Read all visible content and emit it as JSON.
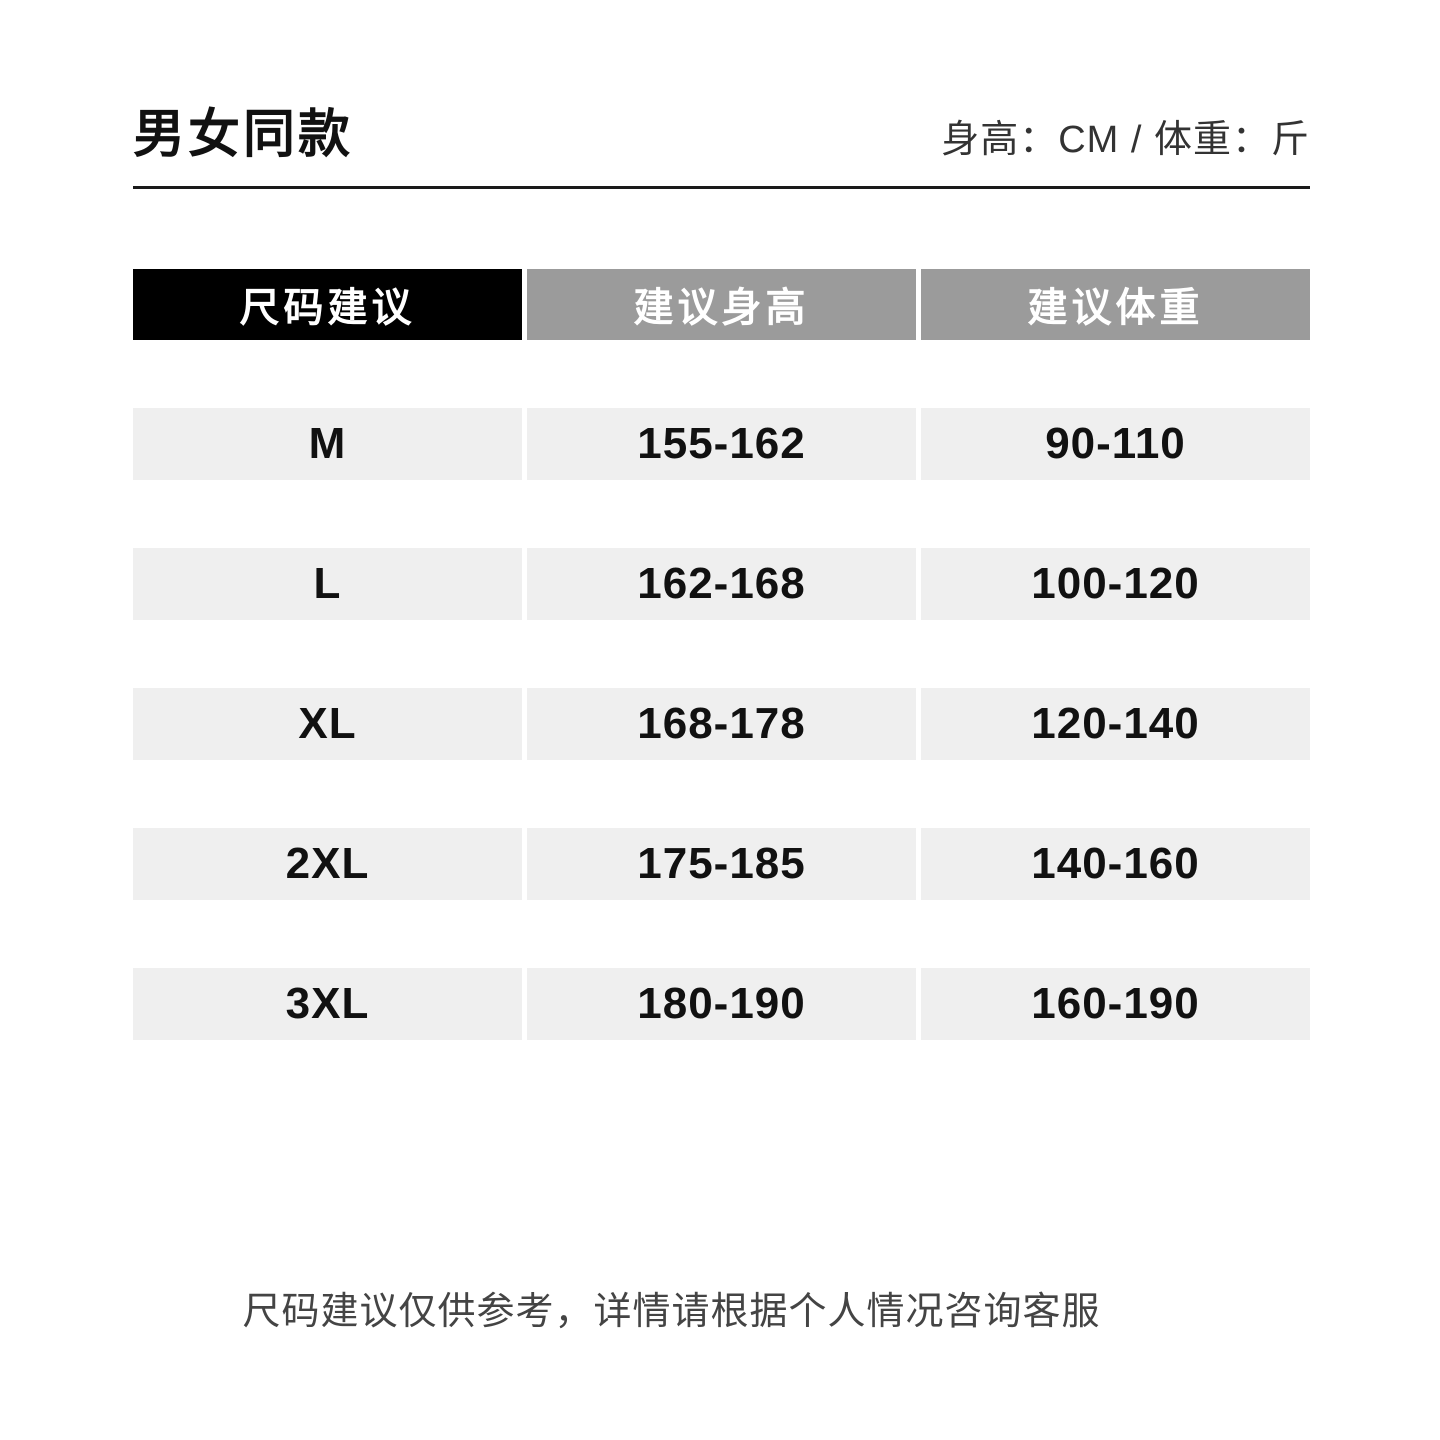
{
  "header": {
    "title": "男女同款",
    "units_note": "身高：CM / 体重：斤"
  },
  "table": {
    "columns": [
      {
        "label": "尺码建议"
      },
      {
        "label": "建议身高"
      },
      {
        "label": "建议体重"
      }
    ],
    "rows": [
      {
        "size": "M",
        "height_range": "155-162",
        "weight_range": "90-110"
      },
      {
        "size": "L",
        "height_range": "162-168",
        "weight_range": "100-120"
      },
      {
        "size": "XL",
        "height_range": "168-178",
        "weight_range": "120-140"
      },
      {
        "size": "2XL",
        "height_range": "175-185",
        "weight_range": "140-160"
      },
      {
        "size": "3XL",
        "height_range": "180-190",
        "weight_range": "160-190"
      }
    ]
  },
  "footer": {
    "note": "尺码建议仅供参考，详情请根据个人情况咨询客服"
  },
  "colors": {
    "size_header_bg": "#000000",
    "column_header_bg": "#9b9b9b",
    "header_text": "#ffffff",
    "row_cell_bg": "#efefef",
    "cell_text": "#111111",
    "divider": "#1a1a1a",
    "note_text": "#444444"
  }
}
